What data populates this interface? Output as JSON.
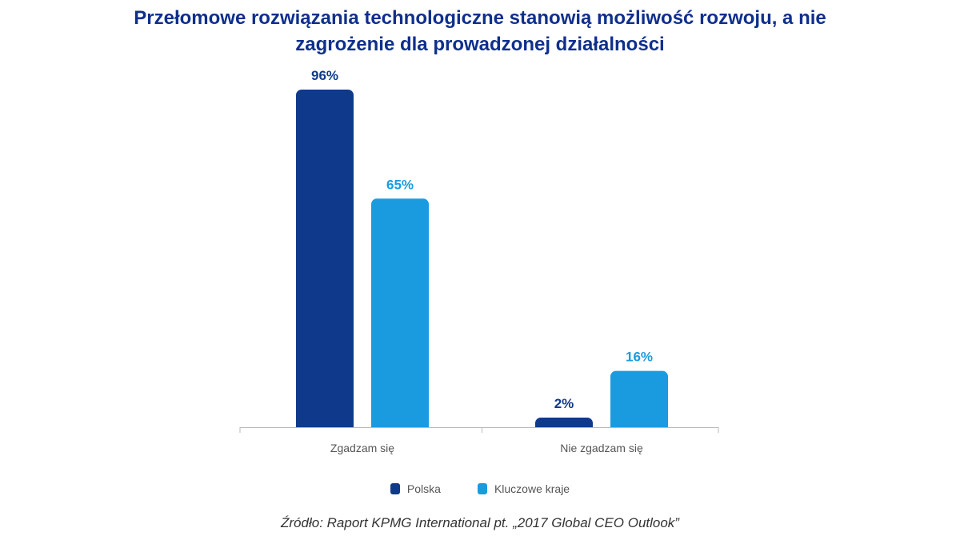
{
  "chart_data": {
    "type": "bar",
    "title_lines": [
      "Przełomowe rozwiązania technologiczne stanowią możliwość rozwoju, a nie",
      "zagrożenie dla prowadzonej działalności"
    ],
    "categories": [
      "Zgadzam się",
      "Nie zgadzam się"
    ],
    "series": [
      {
        "name": "Polska",
        "color": "#0f3a8c",
        "values": [
          96,
          2
        ],
        "labels": [
          "96%",
          "2%"
        ]
      },
      {
        "name": "Kluczowe kraje",
        "color": "#1a9be0",
        "values": [
          65,
          16
        ],
        "labels": [
          "65%",
          "16%"
        ]
      }
    ],
    "ylim": [
      0,
      100
    ],
    "grid": false,
    "legend_position": "bottom-center",
    "xlabel": "",
    "ylabel": ""
  },
  "source": "Źródło: Raport KPMG International pt. „2017 Global CEO Outlook”"
}
